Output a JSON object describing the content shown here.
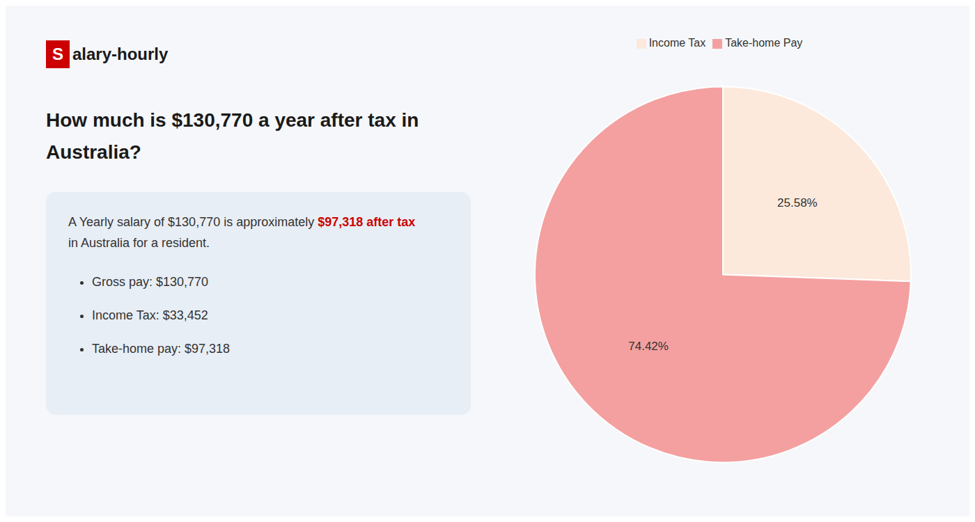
{
  "chart_data": {
    "type": "pie",
    "title": [
      "How much is $130,770 a year after tax in",
      "Australia?"
    ],
    "brand": [
      {
        "text": "S",
        "color": "#cc0000"
      },
      {
        "text": "alary-hourly"
      }
    ],
    "summary": [
      {
        "text": "A Yearly salary of $130,770 is approximately "
      },
      {
        "text": "$97,318 after tax",
        "color": "#cc0000"
      },
      {
        "text": "in Australia for a resident."
      }
    ],
    "bullets": [
      "Gross pay: $130,770",
      "Income Tax: $33,452",
      "Take-home pay: $97,318"
    ],
    "categories": [
      "Income Tax",
      "Take-home Pay"
    ],
    "values": [
      25.58,
      74.42
    ],
    "value_labels": [
      "25.58%",
      "74.42%"
    ],
    "colors": [
      "#fce9dc",
      "#f4a0a0"
    ],
    "data_labels": true,
    "legend": "top"
  }
}
